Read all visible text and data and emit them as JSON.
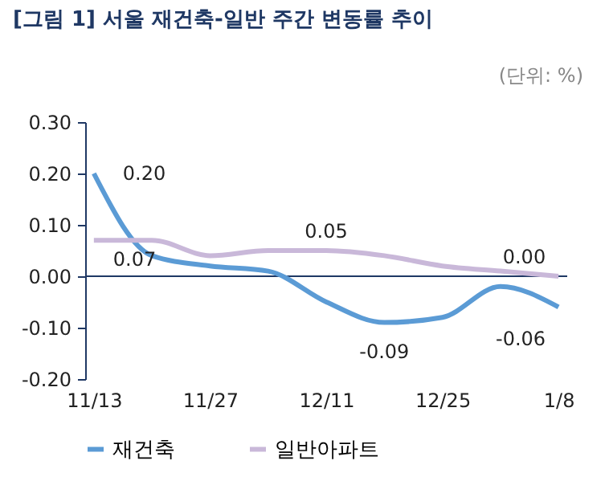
{
  "chart_data": {
    "type": "line",
    "title": "[그림 1] 서울 재건축-일반 주간 변동률 추이",
    "annotations": [
      "(단위: %)"
    ],
    "categories": [
      "11/13",
      null,
      "11/27",
      null,
      "12/11",
      null,
      "12/25",
      null,
      "1/8"
    ],
    "series": [
      {
        "name": "재건축",
        "color": "#5b9bd5",
        "values": [
          0.2,
          0.04,
          0.02,
          0.01,
          -0.05,
          -0.09,
          -0.08,
          -0.02,
          -0.06
        ],
        "value_labels": [
          "0.20",
          null,
          null,
          null,
          null,
          "-0.09",
          null,
          null,
          "-0.06"
        ]
      },
      {
        "name": "일반아파트",
        "color": "#c9b8d9",
        "values": [
          0.07,
          0.07,
          0.04,
          0.05,
          0.05,
          0.04,
          0.02,
          0.01,
          0.0
        ],
        "value_labels": [
          "0.07",
          null,
          null,
          null,
          "0.05",
          null,
          null,
          null,
          "0.00"
        ]
      }
    ],
    "ylim": [
      -0.2,
      0.3
    ],
    "yticks": [
      {
        "value": -0.2,
        "label": "-0.20"
      },
      {
        "value": -0.1,
        "label": "-0.10"
      },
      {
        "value": 0,
        "label": "0.00"
      },
      {
        "value": 0.1,
        "label": "0.10"
      },
      {
        "value": 0.2,
        "label": "0.20"
      },
      {
        "value": 0.3,
        "label": "0.30"
      }
    ],
    "ref_lines": [
      {
        "axis": "y",
        "value": 0,
        "color": "#1f3864"
      }
    ],
    "grid": false,
    "legend": "bottom",
    "marker": "none",
    "line_style": "solid"
  }
}
